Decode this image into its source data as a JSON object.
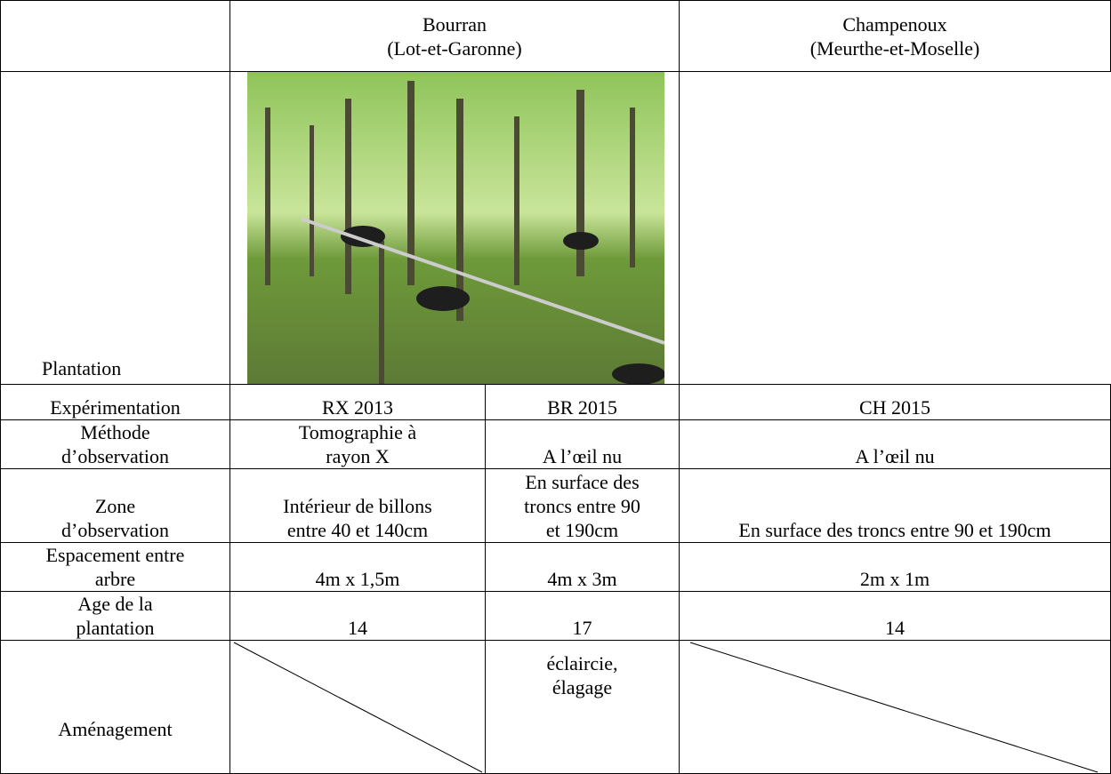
{
  "table": {
    "header": {
      "site_1": "Bourran\n(Lot-et-Garonne)",
      "site_2": "Champenoux\n(Meurthe-et-Moselle)"
    },
    "rows": [
      {
        "label": "Plantation"
      },
      {
        "label": "Expérimentation",
        "cells": [
          "RX 2013",
          "BR 2015",
          "CH 2015"
        ]
      },
      {
        "label": "Méthode\nd’observation",
        "cells": [
          "Tomographie à\nrayon X",
          "A l’œil nu",
          "A l’œil nu"
        ]
      },
      {
        "label": "Zone\nd’observation",
        "cells": [
          "Intérieur de billons\nentre 40 et 140cm",
          "En surface des\ntroncs entre 90\net 190cm",
          "En surface des troncs entre 90 et 190cm"
        ]
      },
      {
        "label": "Espacement entre\narbre",
        "cells": [
          "4m x 1,5m",
          "4m x 3m",
          "2m x 1m"
        ]
      },
      {
        "label": "Age de la\nplantation",
        "cells": [
          "14",
          "17",
          "14"
        ]
      },
      {
        "label": "Aménagement",
        "cells": [
          "éclaircie,\nélagage"
        ]
      }
    ]
  }
}
